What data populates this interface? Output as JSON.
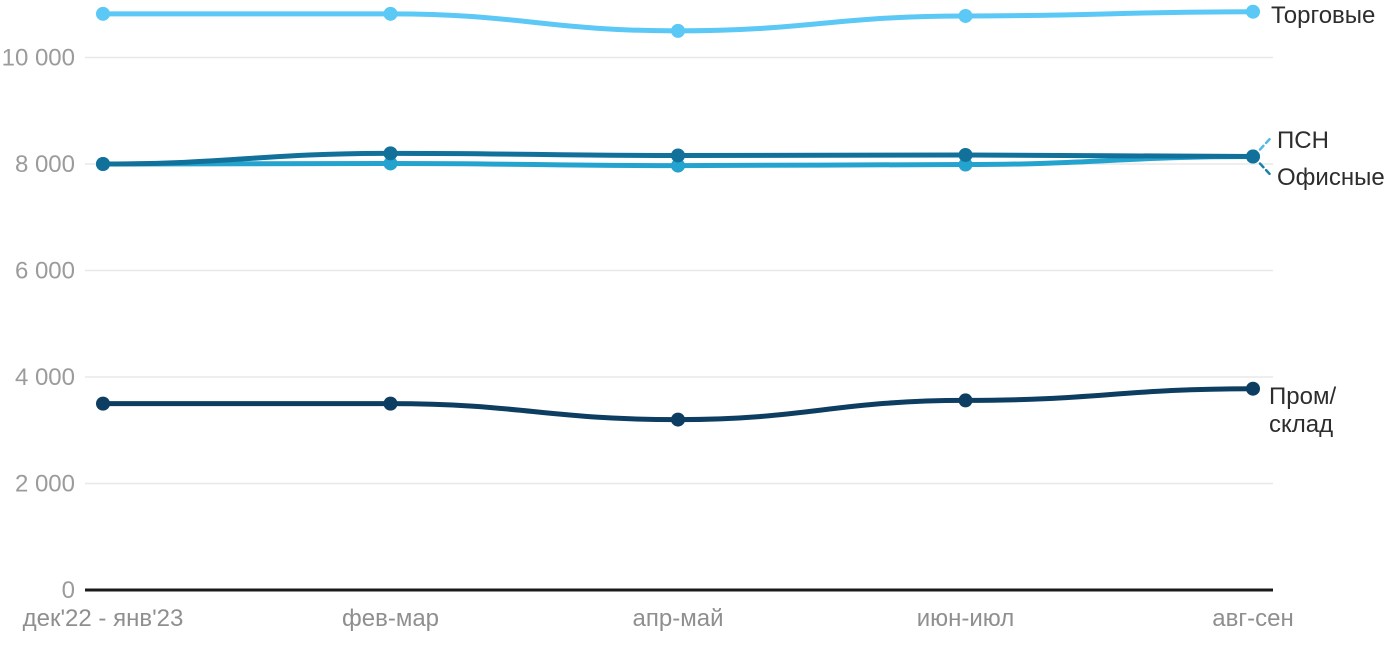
{
  "chart_data": {
    "type": "line",
    "title": "",
    "xlabel": "",
    "ylabel": "",
    "categories": [
      "дек'22 - янв'23",
      "фев-мар",
      "апр-май",
      "июн-июл",
      "авг-сен"
    ],
    "series": [
      {
        "name": "Торговые",
        "label_lines": [
          "Торговые"
        ],
        "color": "#5bc8f5",
        "values": [
          10820,
          10820,
          10500,
          10780,
          10860
        ]
      },
      {
        "name": "ПСН",
        "label_lines": [
          "ПСН"
        ],
        "color": "#12719b",
        "values": [
          8000,
          8200,
          8160,
          8170,
          8140
        ]
      },
      {
        "name": "Офисные",
        "label_lines": [
          "Офисные"
        ],
        "color": "#25a3cf",
        "values": [
          8000,
          8010,
          7970,
          7990,
          8140
        ]
      },
      {
        "name": "Пром/склад",
        "label_lines": [
          "Пром/",
          "склад"
        ],
        "color": "#0d3e61",
        "values": [
          3500,
          3500,
          3200,
          3560,
          3780
        ]
      }
    ],
    "ylim": [
      0,
      11100
    ],
    "yticks": [
      0,
      2000,
      4000,
      6000,
      8000,
      10000
    ],
    "ytick_labels": [
      "0",
      "2 000",
      "4 000",
      "6 000",
      "8 000",
      "10 000"
    ],
    "grid": "horizontal-only",
    "legend_position": "right-of-line-end",
    "colors": {
      "gridline": "#e8e8e8",
      "axis_line": "#1a1a1a",
      "ytick_text": "#9b9b9b",
      "xtick_text": "#8f8f8f",
      "series_label_text": "#2d2d2d",
      "leader_to_psn": "#55b8e5",
      "leader_to_ofisnye": "#1b7fad"
    }
  }
}
